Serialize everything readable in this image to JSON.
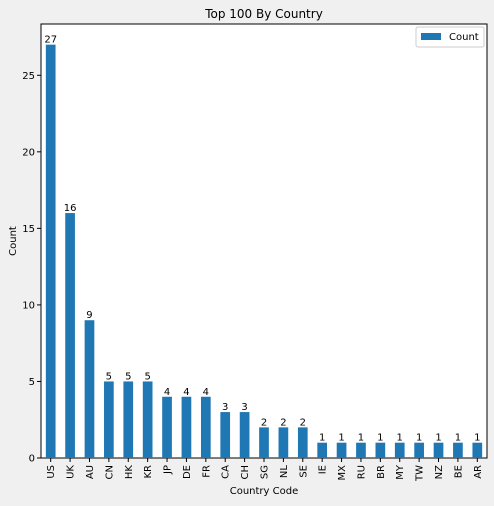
{
  "chart_data": {
    "type": "bar",
    "title": "Top 100 By Country",
    "xlabel": "Country Code",
    "ylabel": "Count",
    "categories": [
      "US",
      "UK",
      "AU",
      "CN",
      "HK",
      "KR",
      "JP",
      "DE",
      "FR",
      "CA",
      "CH",
      "SG",
      "NL",
      "SE",
      "IE",
      "MX",
      "RU",
      "BR",
      "MY",
      "TW",
      "NZ",
      "BE",
      "AR"
    ],
    "series": [
      {
        "name": "Count",
        "values": [
          27,
          16,
          9,
          5,
          5,
          5,
          4,
          4,
          4,
          3,
          3,
          2,
          2,
          2,
          1,
          1,
          1,
          1,
          1,
          1,
          1,
          1,
          1
        ]
      }
    ],
    "ylim": [
      0,
      28.35
    ],
    "yticks": [
      0,
      5,
      10,
      15,
      20,
      25
    ],
    "grid": false,
    "legend_position": "top-right",
    "colors": {
      "bar": "#1f77b4",
      "figure_bg": "#f0f0f0",
      "axes_bg": "#ffffff"
    }
  }
}
